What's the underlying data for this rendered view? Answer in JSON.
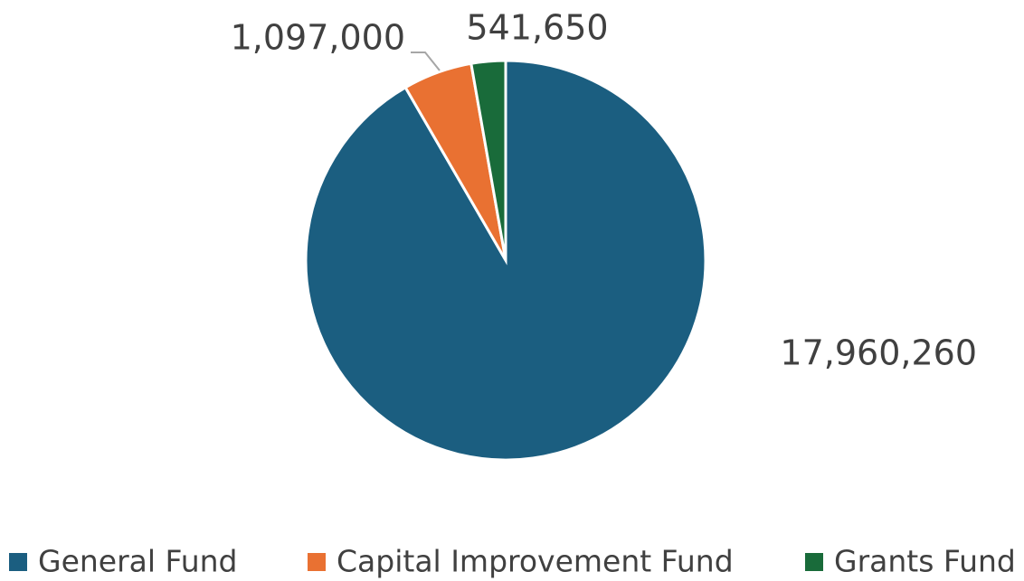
{
  "chart_data": {
    "type": "pie",
    "categories": [
      "General Fund",
      "Capital Improvement Fund",
      "Grants Fund"
    ],
    "values": [
      17960260,
      1097000,
      541650
    ],
    "value_labels": [
      "17,960,260",
      "1,097,000",
      "541,650"
    ],
    "colors": [
      "#1b5e80",
      "#e97132",
      "#196b3a"
    ],
    "legend": "bottom"
  }
}
